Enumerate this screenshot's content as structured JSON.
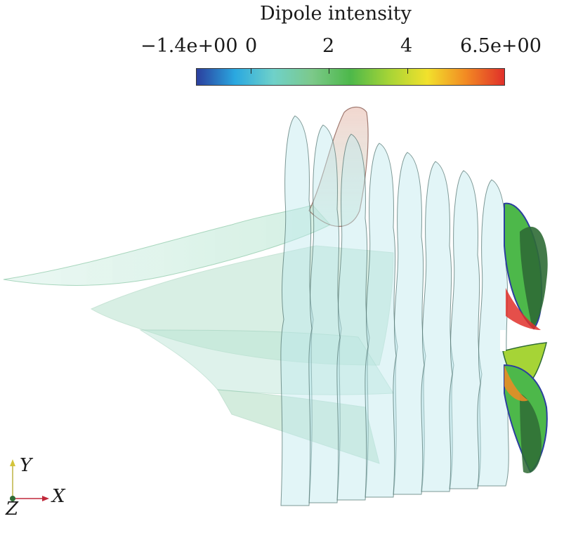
{
  "colorbar": {
    "title": "Dipole intensity",
    "min_label": "−1.4e+00",
    "max_label": "6.5e+00",
    "ticks": [
      "0",
      "2",
      "4"
    ],
    "range": [
      -1.4,
      6.5
    ],
    "tick_values": [
      0,
      2,
      4
    ],
    "colormap": [
      "#2b3f9e",
      "#2aa8e0",
      "#6fd1c9",
      "#7cc98a",
      "#4db84a",
      "#a6d436",
      "#f2e12c",
      "#f28a23",
      "#e0302a"
    ]
  },
  "axes_triad": {
    "y_label": "Y",
    "x_label": "X",
    "z_label": "Z",
    "y_color": "#d4c43a",
    "x_color": "#c0283a",
    "z_color": "#2f6b35"
  },
  "scene": {
    "slice_count": 8,
    "slice_color": "#bfe9ee",
    "wake_color": "#a7dcc2",
    "propeller_colors": [
      "#2f6b35",
      "#4db84a",
      "#a6d436",
      "#e0302a",
      "#f28a23"
    ]
  }
}
